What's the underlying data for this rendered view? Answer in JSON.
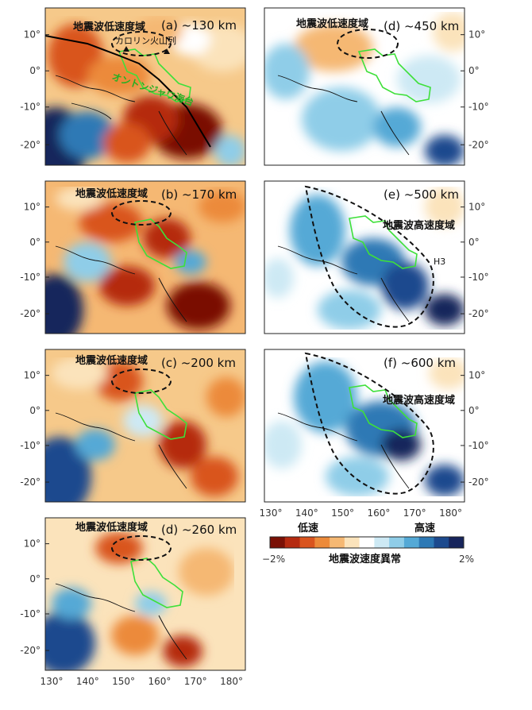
{
  "lon_ticks": [
    "130°",
    "140°",
    "150°",
    "160°",
    "170°",
    "180°"
  ],
  "lat_ticks": [
    "10°",
    "0°",
    "-10°",
    "-20°"
  ],
  "lat_ticks_right": [
    "10°",
    "0°",
    "-10°",
    "-20°"
  ],
  "panels": [
    {
      "id": "a",
      "title": "(a) ~130 km",
      "label": "地震波低速度域",
      "extra1": "カロリン火山列",
      "extra2": "オントンジャワ海台"
    },
    {
      "id": "b",
      "title": "(b) ~170 km",
      "label": "地震波低速度域"
    },
    {
      "id": "c",
      "title": "(c) ~200 km",
      "label": "地震波低速度域"
    },
    {
      "id": "d2",
      "title": "(d) ~260 km",
      "label": "地震波低速度域"
    },
    {
      "id": "d",
      "title": "(d) ~450 km",
      "label": "地震波低速度域"
    },
    {
      "id": "e",
      "title": "(e) ~500 km",
      "label": "地震波高速度域",
      "extra1": "H3"
    },
    {
      "id": "f",
      "title": "(f) ~600 km",
      "label": "地震波高速度域"
    }
  ],
  "colorbar": {
    "left_label": "低速",
    "right_label": "高速",
    "min": "−2%",
    "max": "2%",
    "title": "地震波速度異常",
    "colors": [
      "#7a1005",
      "#b52a10",
      "#d9541e",
      "#ec8a3a",
      "#f5b873",
      "#fbe3bb",
      "#ffffff",
      "#cde9f4",
      "#8fcde8",
      "#54a9d6",
      "#2d79b5",
      "#1c4a8e",
      "#17255c"
    ]
  }
}
